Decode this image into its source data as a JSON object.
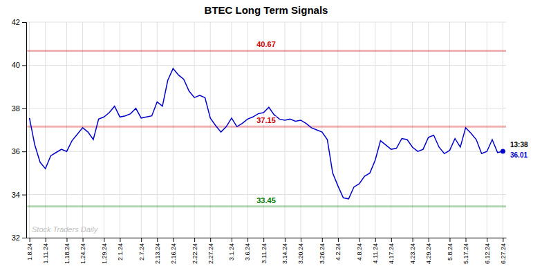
{
  "chart_data": {
    "type": "line",
    "title": "BTEC Long Term Signals",
    "watermark": "Stock Traders Daily",
    "color": "#0000cc",
    "grid": true,
    "ylim": [
      32,
      42
    ],
    "yticks": [
      32,
      34,
      36,
      38,
      40,
      42
    ],
    "categories": [
      "1.8.24",
      null,
      null,
      "1.11.24",
      null,
      null,
      null,
      "1.18.24",
      null,
      null,
      "1.24.24",
      null,
      null,
      null,
      "1.29.24",
      null,
      null,
      "2.1.24",
      null,
      null,
      null,
      "2.7.24",
      null,
      null,
      "2.13.24",
      null,
      null,
      "2.16.24",
      null,
      null,
      null,
      "2.22.24",
      null,
      null,
      "2.27.24",
      null,
      null,
      null,
      "3.1.24",
      null,
      null,
      "3.6.24",
      null,
      null,
      "3.11.24",
      null,
      null,
      null,
      "3.14.24",
      null,
      null,
      "3.20.24",
      null,
      null,
      null,
      "3.26.24",
      null,
      null,
      "4.2.24",
      null,
      null,
      null,
      "4.8.24",
      null,
      null,
      "4.11.24",
      null,
      null,
      "4.17.24",
      null,
      null,
      null,
      "4.23.24",
      null,
      null,
      "4.29.24",
      null,
      null,
      null,
      "5.8.24",
      null,
      null,
      "5.17.24",
      null,
      null,
      null,
      "6.12.24",
      null,
      null,
      "6.27.24"
    ],
    "values": [
      37.55,
      36.3,
      35.5,
      35.2,
      35.8,
      35.95,
      36.1,
      36.0,
      36.5,
      36.8,
      37.1,
      36.9,
      36.55,
      37.5,
      37.6,
      37.8,
      38.1,
      37.6,
      37.65,
      37.75,
      38.0,
      37.55,
      37.6,
      37.65,
      38.3,
      38.1,
      39.3,
      39.85,
      39.55,
      39.35,
      38.8,
      38.5,
      38.6,
      38.5,
      37.55,
      37.2,
      36.9,
      37.15,
      37.55,
      37.15,
      37.3,
      37.5,
      37.6,
      37.75,
      37.8,
      38.05,
      37.7,
      37.5,
      37.45,
      37.5,
      37.4,
      37.45,
      37.3,
      37.1,
      37.0,
      36.9,
      36.55,
      35.0,
      34.4,
      33.85,
      33.8,
      34.35,
      34.5,
      34.85,
      35.0,
      35.6,
      36.5,
      36.3,
      36.1,
      36.15,
      36.6,
      36.55,
      36.2,
      36.0,
      36.1,
      36.65,
      36.75,
      36.2,
      35.9,
      36.05,
      36.6,
      36.2,
      37.1,
      36.85,
      36.55,
      35.9,
      36.0,
      36.55,
      35.95,
      36.01
    ],
    "reference_lines": [
      {
        "value": 40.67,
        "color": "#cc0000"
      },
      {
        "value": 37.15,
        "color": "#cc0000"
      },
      {
        "value": 33.45,
        "color": "#007700"
      }
    ],
    "last_point": {
      "label": "13:38",
      "value": 36.01,
      "color": "#0000cc"
    }
  }
}
